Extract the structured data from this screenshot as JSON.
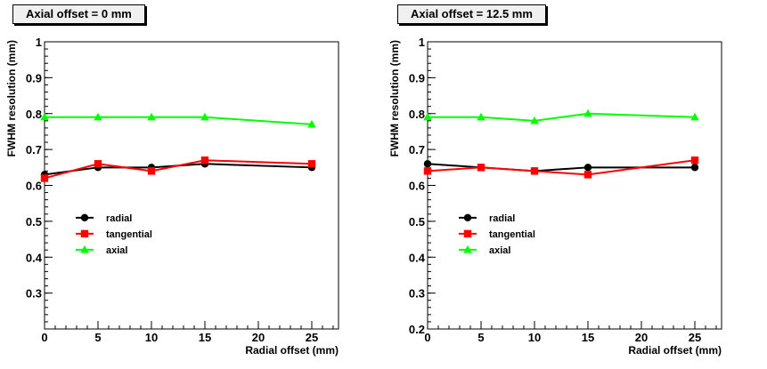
{
  "chart_data": [
    {
      "type": "line",
      "title": "Axial offset = 0 mm",
      "xlabel": "Radial offset (mm)",
      "ylabel": "FWHM resolution (mm)",
      "xlim": [
        0,
        27.5
      ],
      "ylim": [
        0.2,
        1.0
      ],
      "x_ticks": [
        0,
        5,
        10,
        15,
        20,
        25
      ],
      "y_ticks": [
        0.3,
        0.4,
        0.5,
        0.6,
        0.7,
        0.8,
        0.9,
        1.0
      ],
      "y_tick_labels": [
        "0.3",
        "0.4",
        "0.5",
        "0.6",
        "0.7",
        "0.8",
        "0.9",
        "1"
      ],
      "x": [
        0,
        5,
        10,
        15,
        25
      ],
      "series": [
        {
          "name": "radial",
          "marker": "circle",
          "color": "#000000",
          "values": [
            0.63,
            0.65,
            0.65,
            0.66,
            0.65
          ]
        },
        {
          "name": "tangential",
          "marker": "square",
          "color": "#ff0000",
          "values": [
            0.62,
            0.66,
            0.64,
            0.67,
            0.66
          ]
        },
        {
          "name": "axial",
          "marker": "triangle",
          "color": "#00ff00",
          "values": [
            0.79,
            0.79,
            0.79,
            0.79,
            0.77
          ]
        }
      ],
      "legend_position": "lower-left"
    },
    {
      "type": "line",
      "title": "Axial offset = 12.5 mm",
      "xlabel": "Radial offset (mm)",
      "ylabel": "FWHM resolution (mm)",
      "xlim": [
        0,
        27.5
      ],
      "ylim": [
        0.2,
        1.0
      ],
      "x_ticks": [
        0,
        5,
        10,
        15,
        20,
        25
      ],
      "y_ticks": [
        0.2,
        0.3,
        0.4,
        0.5,
        0.6,
        0.7,
        0.8,
        0.9,
        1.0
      ],
      "y_tick_labels": [
        "0.2",
        "0.3",
        "0.4",
        "0.5",
        "0.6",
        "0.7",
        "0.8",
        "0.9",
        "1"
      ],
      "x": [
        0,
        5,
        10,
        15,
        25
      ],
      "series": [
        {
          "name": "radial",
          "marker": "circle",
          "color": "#000000",
          "values": [
            0.66,
            0.65,
            0.64,
            0.65,
            0.65
          ]
        },
        {
          "name": "tangential",
          "marker": "square",
          "color": "#ff0000",
          "values": [
            0.64,
            0.65,
            0.64,
            0.63,
            0.67
          ]
        },
        {
          "name": "axial",
          "marker": "triangle",
          "color": "#00ff00",
          "values": [
            0.79,
            0.79,
            0.78,
            0.8,
            0.79
          ]
        }
      ],
      "legend_position": "lower-left"
    }
  ]
}
